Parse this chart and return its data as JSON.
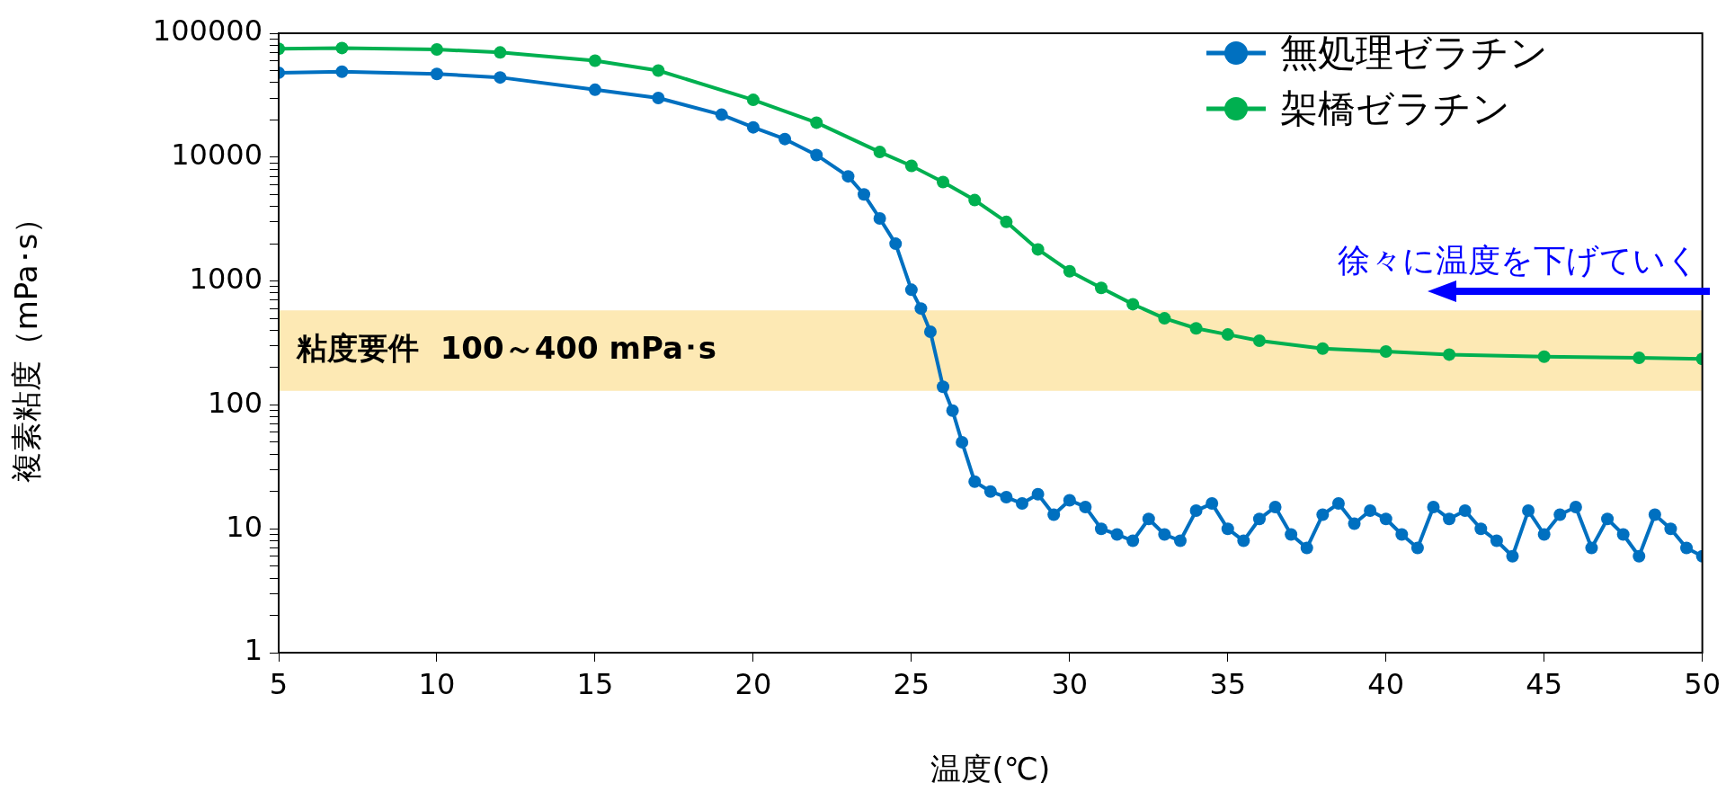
{
  "chart_data": {
    "type": "line",
    "xlabel": "温度(℃)",
    "ylabel": "複素粘度（mPa･s）",
    "log": "y",
    "xlim": [
      5,
      50
    ],
    "xticks": [
      5,
      10,
      15,
      20,
      25,
      30,
      35,
      40,
      45,
      50
    ],
    "ylim": [
      1,
      100000
    ],
    "yticks": [
      1,
      {
        "value": 2,
        "label": null
      },
      {
        "value": 3,
        "label": null
      },
      {
        "value": 4,
        "label": null
      },
      {
        "value": 5,
        "label": null
      },
      {
        "value": 6,
        "label": null
      },
      {
        "value": 7,
        "label": null
      },
      {
        "value": 8,
        "label": null
      },
      {
        "value": 9,
        "label": null
      },
      10,
      {
        "value": 20,
        "label": null
      },
      {
        "value": 30,
        "label": null
      },
      {
        "value": 40,
        "label": null
      },
      {
        "value": 50,
        "label": null
      },
      {
        "value": 60,
        "label": null
      },
      {
        "value": 70,
        "label": null
      },
      {
        "value": 80,
        "label": null
      },
      {
        "value": 90,
        "label": null
      },
      100,
      {
        "value": 200,
        "label": null
      },
      {
        "value": 300,
        "label": null
      },
      {
        "value": 400,
        "label": null
      },
      {
        "value": 500,
        "label": null
      },
      {
        "value": 600,
        "label": null
      },
      {
        "value": 700,
        "label": null
      },
      {
        "value": 800,
        "label": null
      },
      {
        "value": 900,
        "label": null
      },
      1000,
      {
        "value": 2000,
        "label": null
      },
      {
        "value": 3000,
        "label": null
      },
      {
        "value": 4000,
        "label": null
      },
      {
        "value": 5000,
        "label": null
      },
      {
        "value": 6000,
        "label": null
      },
      {
        "value": 7000,
        "label": null
      },
      {
        "value": 8000,
        "label": null
      },
      {
        "value": 9000,
        "label": null
      },
      10000,
      {
        "value": 20000,
        "label": null
      },
      {
        "value": 30000,
        "label": null
      },
      {
        "value": 40000,
        "label": null
      },
      {
        "value": 50000,
        "label": null
      },
      {
        "value": 60000,
        "label": null
      },
      {
        "value": 70000,
        "label": null
      },
      {
        "value": 80000,
        "label": null
      },
      {
        "value": 90000,
        "label": null
      },
      100000
    ],
    "grid": false,
    "legend": "top right",
    "marker": "circle",
    "line_style": "solid",
    "bands": [
      {
        "axis": "y",
        "from": 130,
        "to": 580,
        "label": "粘度要件  100～400 mPa･s",
        "color": "#fde9b4"
      }
    ],
    "annotations": [
      "徐々に温度を下げていく"
    ],
    "series": [
      {
        "name": "無処理ゼラチン",
        "color": "#0070c0",
        "x": [
          5,
          7,
          10,
          12,
          15,
          17,
          19,
          20,
          21,
          22,
          23,
          23.5,
          24,
          24.5,
          25,
          25.3,
          25.6,
          26,
          26.3,
          26.6,
          27,
          27.5,
          28,
          28.5,
          29,
          29.5,
          30,
          30.5,
          31,
          31.5,
          32,
          32.5,
          33,
          33.5,
          34,
          34.5,
          35,
          35.5,
          36,
          36.5,
          37,
          37.5,
          38,
          38.5,
          39,
          39.5,
          40,
          40.5,
          41,
          41.5,
          42,
          42.5,
          43,
          43.5,
          44,
          44.5,
          45,
          45.5,
          46,
          46.5,
          47,
          47.5,
          48,
          48.5,
          49,
          49.5,
          50
        ],
        "values": [
          48000,
          49000,
          47000,
          44000,
          35000,
          30000,
          22000,
          17400,
          14000,
          10400,
          7000,
          5000,
          3200,
          2000,
          850,
          600,
          390,
          140,
          90,
          50,
          24,
          20,
          18,
          16,
          19,
          13,
          17,
          15,
          10,
          9,
          8,
          12,
          9,
          8,
          14,
          16,
          10,
          8,
          12,
          15,
          9,
          7,
          13,
          16,
          11,
          14,
          12,
          9,
          7,
          15,
          12,
          14,
          10,
          8,
          6,
          14,
          9,
          13,
          15,
          7,
          12,
          9,
          6,
          13,
          10,
          7,
          6
        ]
      },
      {
        "name": "架橋ゼラチン",
        "color": "#00b050",
        "x": [
          5,
          7,
          10,
          12,
          15,
          17,
          20,
          22,
          24,
          25,
          26,
          27,
          28,
          29,
          30,
          31,
          32,
          33,
          34,
          35,
          36,
          38,
          40,
          42,
          45,
          48,
          50
        ],
        "values": [
          75000,
          76000,
          74000,
          70000,
          60000,
          50000,
          29000,
          19000,
          11000,
          8500,
          6300,
          4500,
          3000,
          1800,
          1200,
          880,
          650,
          500,
          415,
          370,
          330,
          285,
          270,
          255,
          245,
          240,
          235
        ]
      }
    ]
  }
}
